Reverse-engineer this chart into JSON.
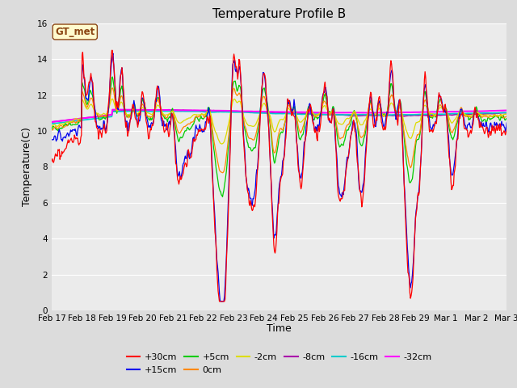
{
  "title": "Temperature Profile B",
  "xlabel": "Time",
  "ylabel": "Temperature(C)",
  "ylim": [
    0,
    16
  ],
  "yticks": [
    0,
    2,
    4,
    6,
    8,
    10,
    12,
    14,
    16
  ],
  "date_labels": [
    "Feb 17",
    "Feb 18",
    "Feb 19",
    "Feb 20",
    "Feb 21",
    "Feb 22",
    "Feb 23",
    "Feb 24",
    "Feb 25",
    "Feb 26",
    "Feb 27",
    "Feb 28",
    "Feb 29",
    "Mar 1",
    "Mar 2",
    "Mar 3"
  ],
  "n_days": 15,
  "series_colors": {
    "+30cm": "#FF0000",
    "+15cm": "#0000EE",
    "+5cm": "#00CC00",
    "0cm": "#FF8800",
    "-2cm": "#DDDD00",
    "-8cm": "#AA00AA",
    "-16cm": "#00CCCC",
    "-32cm": "#FF00FF"
  },
  "annotation_text": "GT_met",
  "bg_color": "#DCDCDC",
  "plot_bg_color": "#EBEBEB",
  "grid_color": "#FFFFFF",
  "title_fontsize": 11,
  "label_fontsize": 9,
  "tick_fontsize": 7.5,
  "legend_fontsize": 8
}
